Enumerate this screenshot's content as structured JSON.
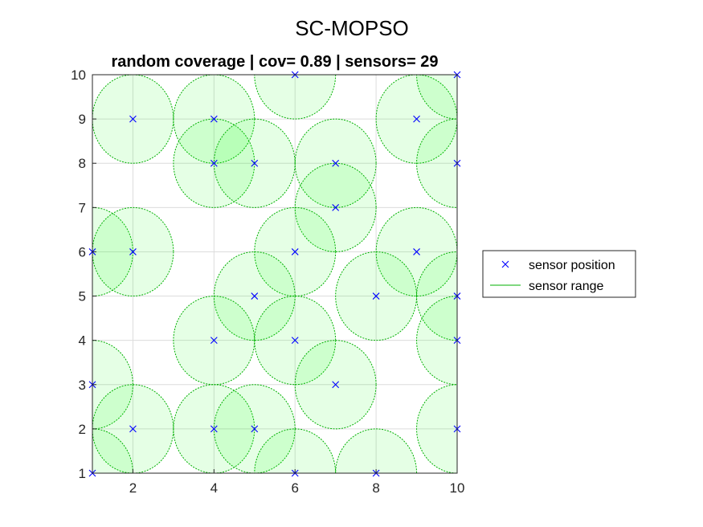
{
  "figure": {
    "suptitle": "SC-MOPSO"
  },
  "chart_data": {
    "type": "scatter",
    "title": "random coverage | cov= 0.89 | sensors= 29",
    "xlabel": "",
    "ylabel": "",
    "xlim": [
      1,
      10
    ],
    "ylim": [
      1,
      10
    ],
    "xticks": [
      2,
      4,
      6,
      8,
      10
    ],
    "yticks": [
      1,
      2,
      3,
      4,
      5,
      6,
      7,
      8,
      9,
      10
    ],
    "grid": true,
    "sensor_radius": 1,
    "legend_placement": "outside-right",
    "colors": {
      "marker": "#0000ff",
      "range_edge": "#00b000",
      "range_fill": "#00ff00",
      "grid": "#dcdcdc",
      "axes": "#262626"
    },
    "series": [
      {
        "name": "sensor position",
        "marker": "x",
        "points": [
          [
            2,
            9
          ],
          [
            4,
            9
          ],
          [
            4,
            8
          ],
          [
            5,
            8
          ],
          [
            6,
            10
          ],
          [
            7,
            8
          ],
          [
            7,
            7
          ],
          [
            9,
            9
          ],
          [
            10,
            10
          ],
          [
            10,
            8
          ],
          [
            1,
            6
          ],
          [
            2,
            6
          ],
          [
            6,
            6
          ],
          [
            9,
            6
          ],
          [
            5,
            5
          ],
          [
            8,
            5
          ],
          [
            10,
            5
          ],
          [
            4,
            4
          ],
          [
            6,
            4
          ],
          [
            10,
            4
          ],
          [
            1,
            3
          ],
          [
            7,
            3
          ],
          [
            2,
            2
          ],
          [
            4,
            2
          ],
          [
            5,
            2
          ],
          [
            10,
            2
          ],
          [
            1,
            1
          ],
          [
            6,
            1
          ],
          [
            8,
            1
          ]
        ]
      },
      {
        "name": "sensor range",
        "marker": "line"
      }
    ]
  }
}
